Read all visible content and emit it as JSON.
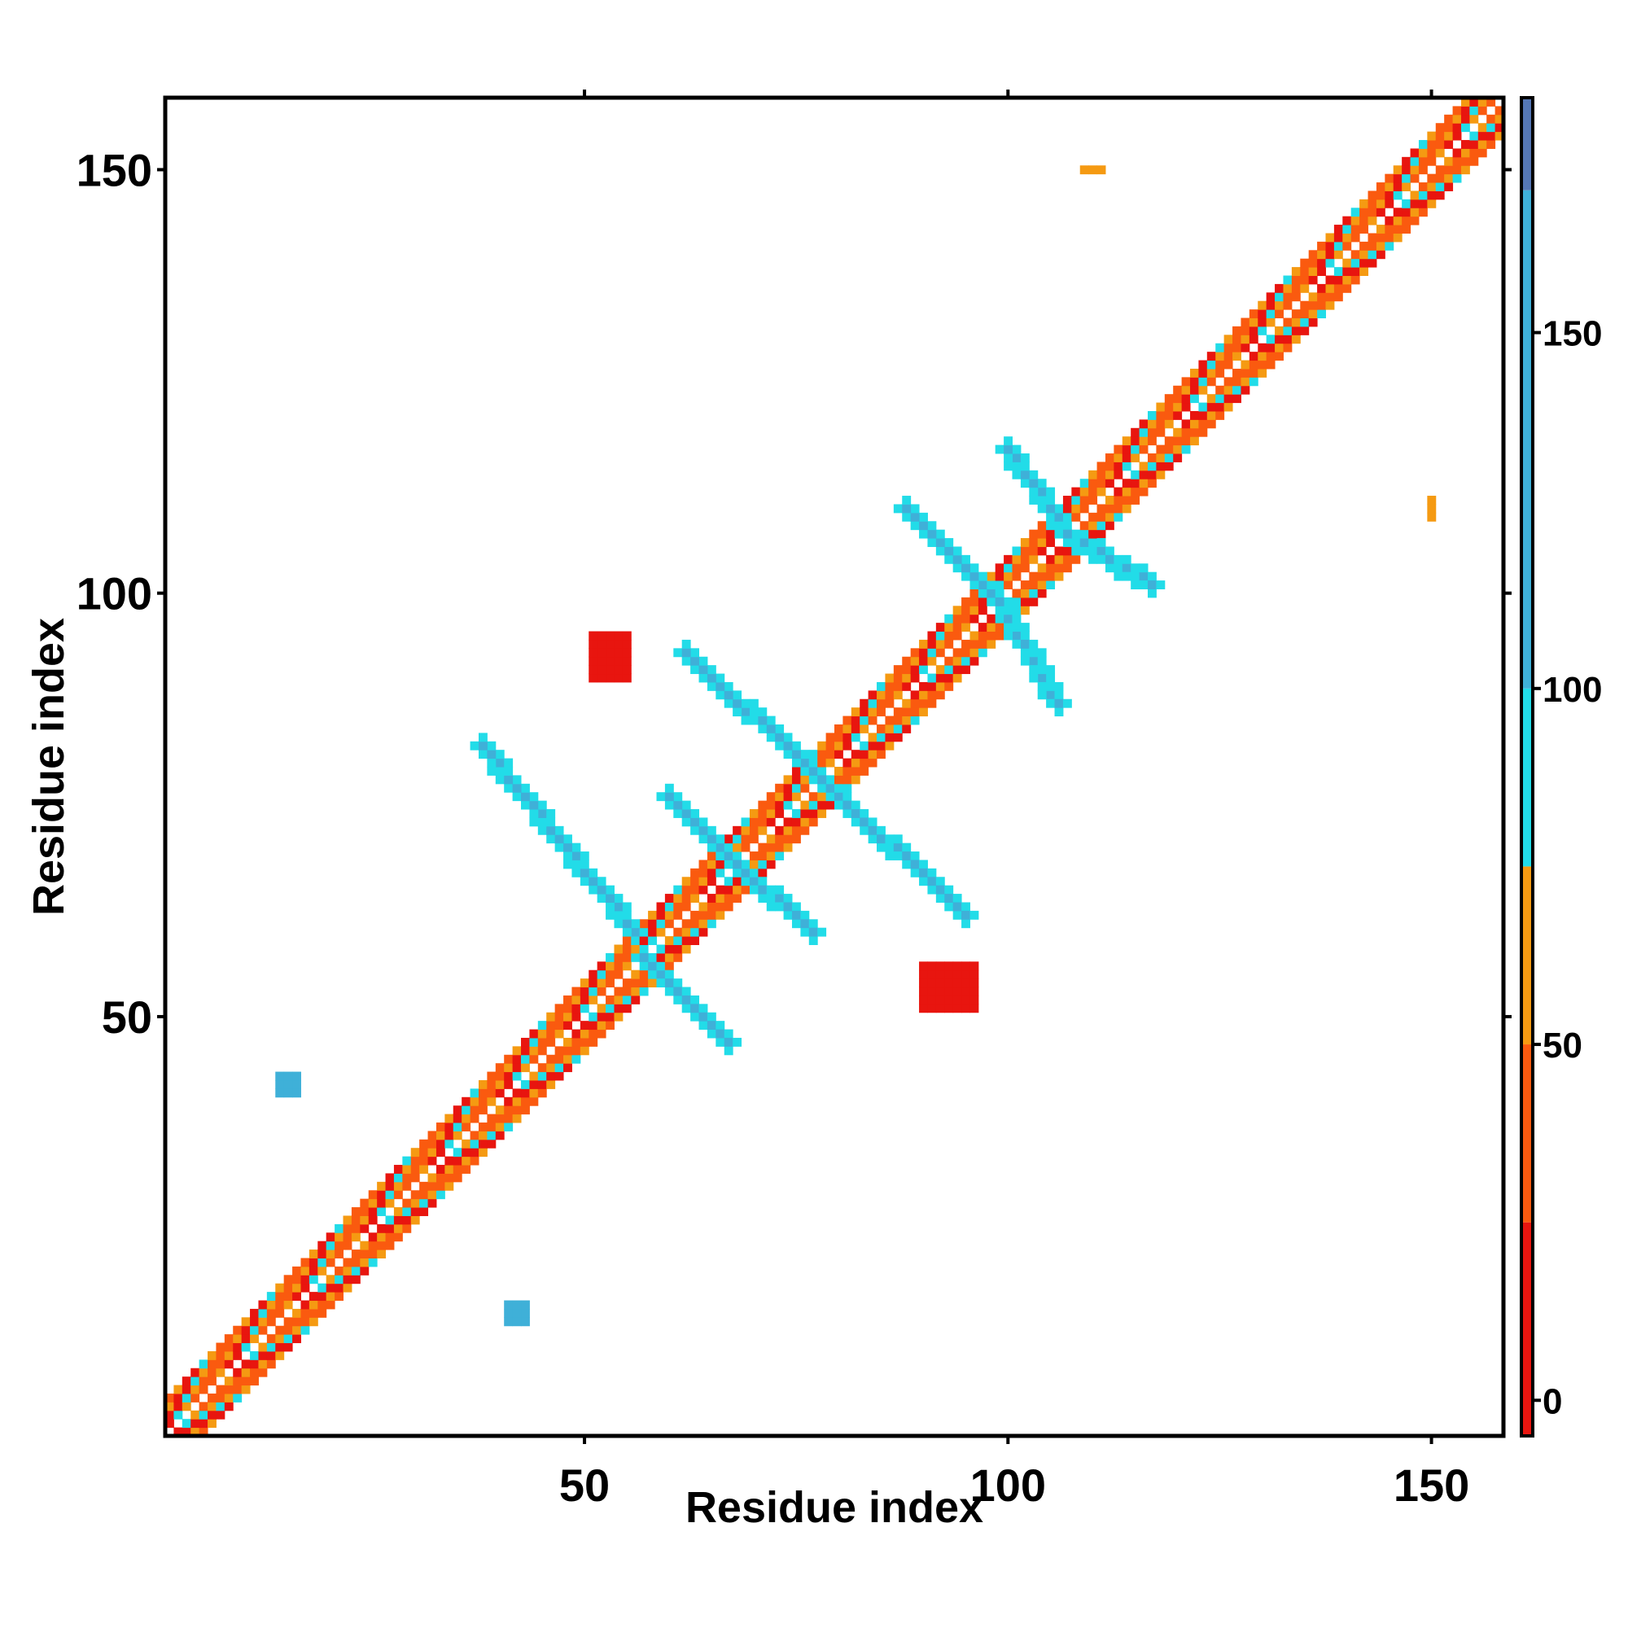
{
  "chart_data": {
    "type": "heatmap",
    "title": "",
    "xlabel": "Residue index",
    "ylabel": "Residue index",
    "xlim": [
      0.5,
      158.5
    ],
    "ylim": [
      0.5,
      158.5
    ],
    "x_ticks": [
      50,
      100,
      150
    ],
    "y_ticks": [
      50,
      100,
      150
    ],
    "grid": false,
    "colorbar": {
      "range": [
        -5,
        183
      ],
      "ticks": [
        0,
        50,
        100,
        150
      ],
      "bands": [
        {
          "from": -5,
          "to": 25,
          "color": "#e8150f"
        },
        {
          "from": 25,
          "to": 50,
          "color": "#fa5a0f"
        },
        {
          "from": 50,
          "to": 75,
          "color": "#f59a12"
        },
        {
          "from": 75,
          "to": 100,
          "color": "#22dce8"
        },
        {
          "from": 100,
          "to": 170,
          "color": "#3fb0d8"
        },
        {
          "from": 170,
          "to": 183,
          "color": "#5577b5"
        }
      ]
    },
    "diagonal": {
      "from": 1,
      "to": 158,
      "description_colors": [
        "#e8150f",
        "#fa5a0f",
        "#f59a12",
        "#22dce8"
      ]
    },
    "contact_regions": [
      {
        "kind": "strand_anti",
        "from": [
          56,
          60
        ],
        "to": [
          38,
          82
        ],
        "value": 140
      },
      {
        "kind": "strand_anti",
        "from": [
          57,
          57
        ],
        "to": [
          67,
          47
        ],
        "value": 140
      },
      {
        "kind": "strand_anti",
        "from": [
          68,
          68
        ],
        "to": [
          60,
          76
        ],
        "value": 140
      },
      {
        "kind": "strand_anti",
        "from": [
          68,
          68
        ],
        "to": [
          77,
          60
        ],
        "value": 140
      },
      {
        "kind": "strand_anti",
        "from": [
          78,
          78
        ],
        "to": [
          62,
          93
        ],
        "value": 140
      },
      {
        "kind": "strand_anti",
        "from": [
          78,
          78
        ],
        "to": [
          95,
          62
        ],
        "value": 140
      },
      {
        "kind": "strand_anti",
        "from": [
          99,
          99
        ],
        "to": [
          88,
          110
        ],
        "value": 140
      },
      {
        "kind": "strand_anti",
        "from": [
          99,
          99
        ],
        "to": [
          106,
          87
        ],
        "value": 140
      },
      {
        "kind": "strand_anti",
        "from": [
          107,
          107
        ],
        "to": [
          100,
          117
        ],
        "value": 140
      },
      {
        "kind": "strand_anti",
        "from": [
          107,
          107
        ],
        "to": [
          117,
          101
        ],
        "value": 140
      },
      {
        "kind": "blob",
        "x": [
          51,
          55
        ],
        "y": [
          90,
          95
        ],
        "value": 5
      },
      {
        "kind": "blob",
        "x": [
          90,
          96
        ],
        "y": [
          51,
          56
        ],
        "value": 5
      },
      {
        "kind": "blob",
        "x": [
          14,
          16
        ],
        "y": [
          41,
          43
        ],
        "value": 150
      },
      {
        "kind": "blob",
        "x": [
          41,
          43
        ],
        "y": [
          14,
          16
        ],
        "value": 150
      },
      {
        "kind": "blob",
        "x": [
          109,
          111
        ],
        "y": [
          150,
          150
        ],
        "value": 60
      },
      {
        "kind": "blob",
        "x": [
          150,
          150
        ],
        "y": [
          109,
          111
        ],
        "value": 60
      }
    ]
  }
}
